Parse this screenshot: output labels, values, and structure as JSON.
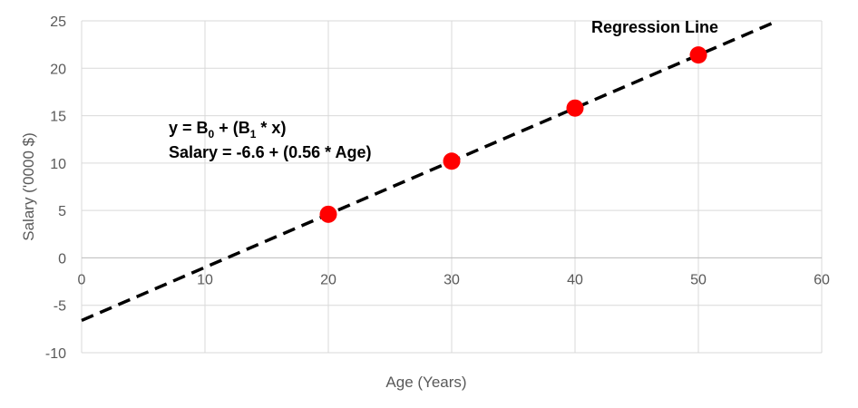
{
  "chart_data": {
    "type": "scatter",
    "xlabel": "Age (Years)",
    "ylabel": "Salary ('0000 $)",
    "xlim": [
      0,
      60
    ],
    "ylim": [
      -10,
      25
    ],
    "x_ticks": [
      0,
      10,
      20,
      30,
      40,
      50,
      60
    ],
    "y_ticks": [
      -10,
      -5,
      0,
      5,
      10,
      15,
      20,
      25
    ],
    "grid": true,
    "points": {
      "x": [
        20,
        30,
        40,
        50
      ],
      "y": [
        4.6,
        10.2,
        15.8,
        21.4
      ],
      "color": "#ff0000"
    },
    "regression_line": {
      "intercept": -6.6,
      "slope": 0.56,
      "style": "dashed",
      "color": "#000000",
      "label": "Regression Line"
    },
    "annotations": {
      "equation_y_prefix": "y = B",
      "equation_sub0": "0",
      "equation_mid": " + (B",
      "equation_sub1": "1",
      "equation_suffix": " * x)",
      "equation_salary": "Salary = -6.6 + (0.56 * Age)"
    }
  }
}
